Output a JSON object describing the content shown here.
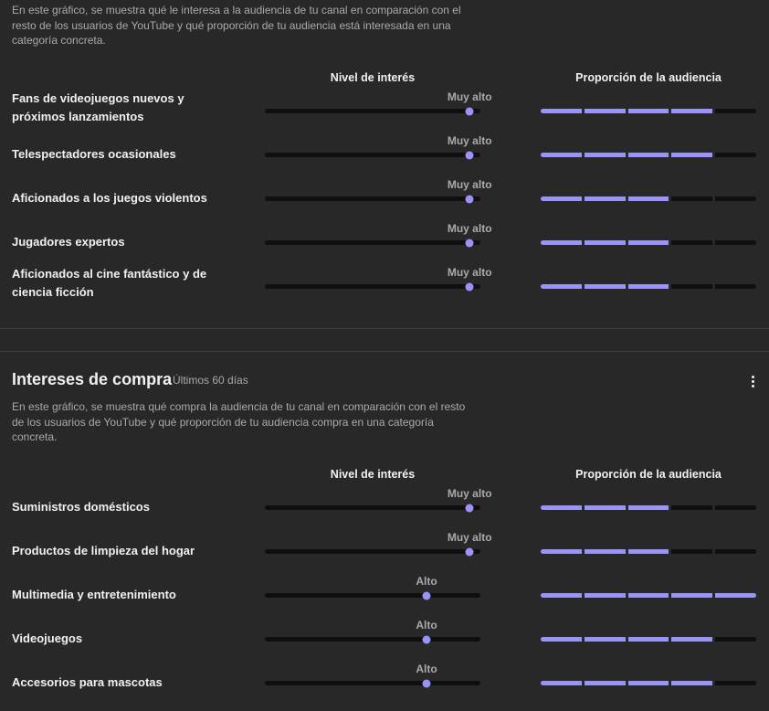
{
  "interest_section": {
    "description": "En este gráfico, se muestra qué le interesa a la audiencia de tu canal en comparación con el resto de los usuarios de YouTube y qué proporción de tu audiencia está interesada en una categoría concreta.",
    "col_level": "Nivel de interés",
    "col_share": "Proporción de la audiencia",
    "rows": [
      {
        "label": "Fans de videojuegos nuevos y próximos lanzamientos",
        "level_text": "Muy alto",
        "level": 0.95,
        "segments_filled": 4
      },
      {
        "label": "Telespectadores ocasionales",
        "level_text": "Muy alto",
        "level": 0.95,
        "segments_filled": 4
      },
      {
        "label": "Aficionados a los juegos violentos",
        "level_text": "Muy alto",
        "level": 0.95,
        "segments_filled": 3
      },
      {
        "label": "Jugadores expertos",
        "level_text": "Muy alto",
        "level": 0.95,
        "segments_filled": 3
      },
      {
        "label": "Aficionados al cine fantástico y de ciencia ficción",
        "level_text": "Muy alto",
        "level": 0.95,
        "segments_filled": 3
      }
    ]
  },
  "purchase_section": {
    "title": "Intereses de compra",
    "period": "Últimos 60 días",
    "description": "En este gráfico, se muestra qué compra la audiencia de tu canal en comparación con el resto de los usuarios de YouTube y qué proporción de tu audiencia compra en una categoría concreta.",
    "col_level": "Nivel de interés",
    "col_share": "Proporción de la audiencia",
    "rows": [
      {
        "label": "Suministros domésticos",
        "level_text": "Muy alto",
        "level": 0.95,
        "segments_filled": 3
      },
      {
        "label": "Productos de limpieza del hogar",
        "level_text": "Muy alto",
        "level": 0.95,
        "segments_filled": 3
      },
      {
        "label": "Multimedia y entretenimiento",
        "level_text": "Alto",
        "level": 0.75,
        "segments_filled": 5
      },
      {
        "label": "Videojuegos",
        "level_text": "Alto",
        "level": 0.75,
        "segments_filled": 4
      },
      {
        "label": "Accesorios para mascotas",
        "level_text": "Alto",
        "level": 0.75,
        "segments_filled": 4
      }
    ]
  },
  "segments_total": 5,
  "colors": {
    "accent": "#9b93f5",
    "track": "#0f0f0f",
    "background": "#282828"
  },
  "icons": {
    "more": "more-vert-icon"
  }
}
